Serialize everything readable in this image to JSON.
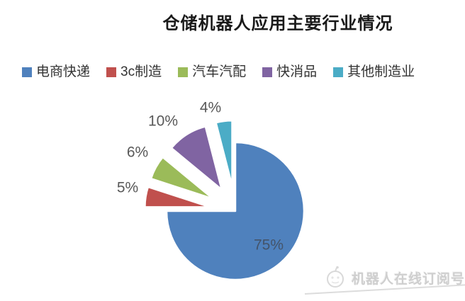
{
  "chart_data": {
    "type": "pie",
    "title": "仓储机器人应用主要行业情况",
    "unit": "%",
    "direction": "clockwise",
    "start_angle_deg": 0,
    "legend_position": "top",
    "slices": [
      {
        "label": "电商快递",
        "value": 75,
        "color": "#4F81BD",
        "exploded": false
      },
      {
        "label": "3c制造",
        "value": 5,
        "color": "#C0504D",
        "exploded": true
      },
      {
        "label": "汽车汽配",
        "value": 6,
        "color": "#9BBB59",
        "exploded": true
      },
      {
        "label": "快消品",
        "value": 10,
        "color": "#8064A2",
        "exploded": true
      },
      {
        "label": "其他制造业",
        "value": 4,
        "color": "#4BACC6",
        "exploded": true
      }
    ],
    "data_labels": [
      "75%",
      "5%",
      "6%",
      "10%",
      "4%"
    ],
    "label_color_inside": "#44546A",
    "label_color_outside": "#595959",
    "slice_border_color": "#ffffff"
  },
  "watermark": {
    "text": "机器人在线订阅号",
    "icon": "robot-logo",
    "color": "#cfcfcf"
  }
}
